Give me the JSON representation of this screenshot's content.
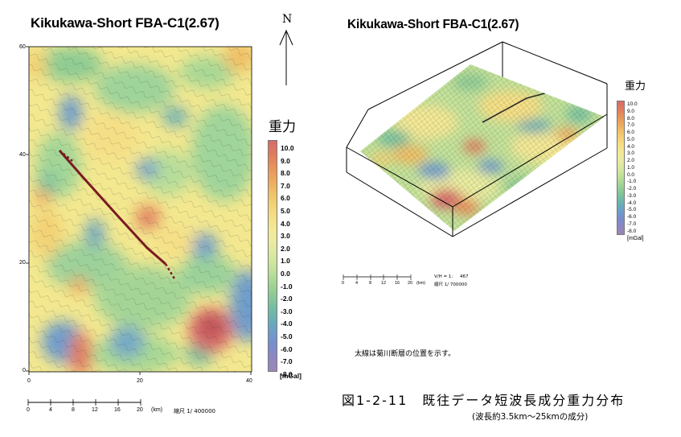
{
  "left_map": {
    "title": "Kikukawa-Short FBA-C1(2.67)",
    "y_ticks": [
      "60",
      "40",
      "20",
      "0"
    ],
    "x_ticks": [
      "0",
      "20",
      "40"
    ],
    "scale_ticks": [
      "0",
      "4",
      "8",
      "12",
      "16",
      "20"
    ],
    "scale_unit": "(km)",
    "scale_ratio": "縮尺 1/ 400000"
  },
  "right_map": {
    "title": "Kikukawa-Short FBA-C1(2.67)",
    "scale_ticks": [
      "0",
      "4",
      "8",
      "12",
      "16",
      "20"
    ],
    "scale_unit": "(km)",
    "vh_ratio": "V/H = 1:     467",
    "scale_ratio": "縮尺 1/ 700000",
    "note": "太線は菊川断層の位置を示す。"
  },
  "north_label": "N",
  "legend_left": {
    "title": "重力",
    "labels": [
      "10.0",
      "9.0",
      "8.0",
      "7.0",
      "6.0",
      "5.0",
      "4.0",
      "3.0",
      "2.0",
      "1.0",
      "0.0",
      "-1.0",
      "-2.0",
      "-3.0",
      "-4.0",
      "-5.0",
      "-6.0",
      "-7.0",
      "-8.0"
    ],
    "unit": "[mGal]"
  },
  "legend_right": {
    "title": "重力",
    "labels": [
      "10.0",
      "9.0",
      "8.0",
      "7.0",
      "6.0",
      "5.0",
      "4.0",
      "3.0",
      "2.0",
      "1.0",
      "0.0",
      "-1.0",
      "-2.0",
      "-3.0",
      "-4.0",
      "-5.0",
      "-6.0",
      "-7.0",
      "-8.0"
    ],
    "unit": "[mGal]"
  },
  "figure": {
    "caption": "図1-2-11　既往データ短波長成分重力分布",
    "subcaption": "(波長約3.5km～25kmの成分)"
  },
  "colors": {
    "scale": [
      "#d86a6a",
      "#e07a5e",
      "#e8915a",
      "#eda75c",
      "#f0bf66",
      "#f3d274",
      "#f5df86",
      "#f3e895",
      "#e9eca0",
      "#d9e8a0",
      "#c3e29a",
      "#a8d894",
      "#8dcb95",
      "#75bfa0",
      "#68aeb6",
      "#6e9ccb",
      "#7b8ccc",
      "#8e86c2",
      "#9a88b6"
    ]
  },
  "chart_data": [
    {
      "type": "heatmap",
      "title": "Kikukawa-Short FBA-C1(2.67)",
      "x_ticks": [
        0,
        20,
        40
      ],
      "y_ticks": [
        0,
        20,
        40,
        60
      ],
      "xlim": [
        0,
        40
      ],
      "ylim": [
        0,
        60
      ],
      "colorbar_unit": "mGal",
      "colorbar_range": [
        -8.0,
        10.0
      ],
      "fault_line": [
        [
          5.5,
          38.5
        ],
        [
          9,
          35
        ],
        [
          16,
          25
        ],
        [
          21,
          20
        ],
        [
          26,
          16.5
        ]
      ]
    },
    {
      "type": "heatmap",
      "title": "Kikukawa-Short FBA-C1(2.67)",
      "colorbar_unit": "mGal",
      "colorbar_range": [
        -8.0,
        10.0
      ]
    }
  ]
}
